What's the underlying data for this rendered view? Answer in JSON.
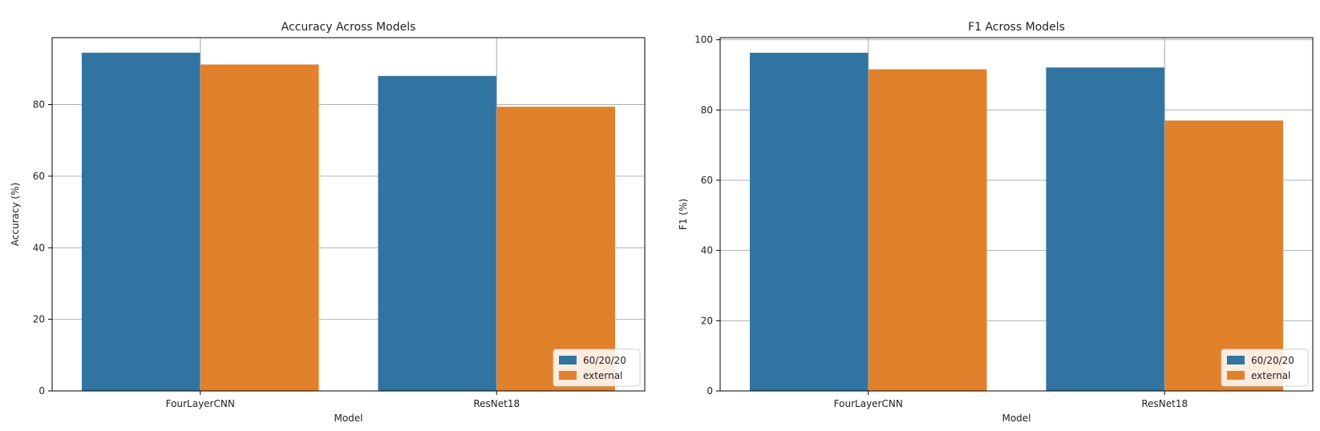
{
  "chart_data": [
    {
      "type": "bar",
      "title": "Accuracy Across Models",
      "xlabel": "Model",
      "ylabel": "Accuracy (%)",
      "categories": [
        "FourLayerCNN",
        "ResNet18"
      ],
      "series": [
        {
          "name": "60/20/20",
          "values": [
            94.5,
            88.0
          ],
          "color": "#3274a1"
        },
        {
          "name": "external",
          "values": [
            91.2,
            79.4
          ],
          "color": "#e1812c"
        }
      ],
      "ylim": [
        0,
        98.7
      ],
      "yticks": [
        0,
        20,
        40,
        60,
        80
      ],
      "grid": true,
      "legend": "lower right"
    },
    {
      "type": "bar",
      "title": "F1 Across Models",
      "xlabel": "Model",
      "ylabel": "F1 (%)",
      "categories": [
        "FourLayerCNN",
        "ResNet18"
      ],
      "series": [
        {
          "name": "60/20/20",
          "values": [
            96.3,
            92.1
          ],
          "color": "#3274a1"
        },
        {
          "name": "external",
          "values": [
            91.6,
            77.0
          ],
          "color": "#e1812c"
        }
      ],
      "ylim": [
        0,
        100.6
      ],
      "yticks": [
        0,
        20,
        40,
        60,
        80,
        100
      ],
      "grid": true,
      "legend": "lower right"
    }
  ]
}
